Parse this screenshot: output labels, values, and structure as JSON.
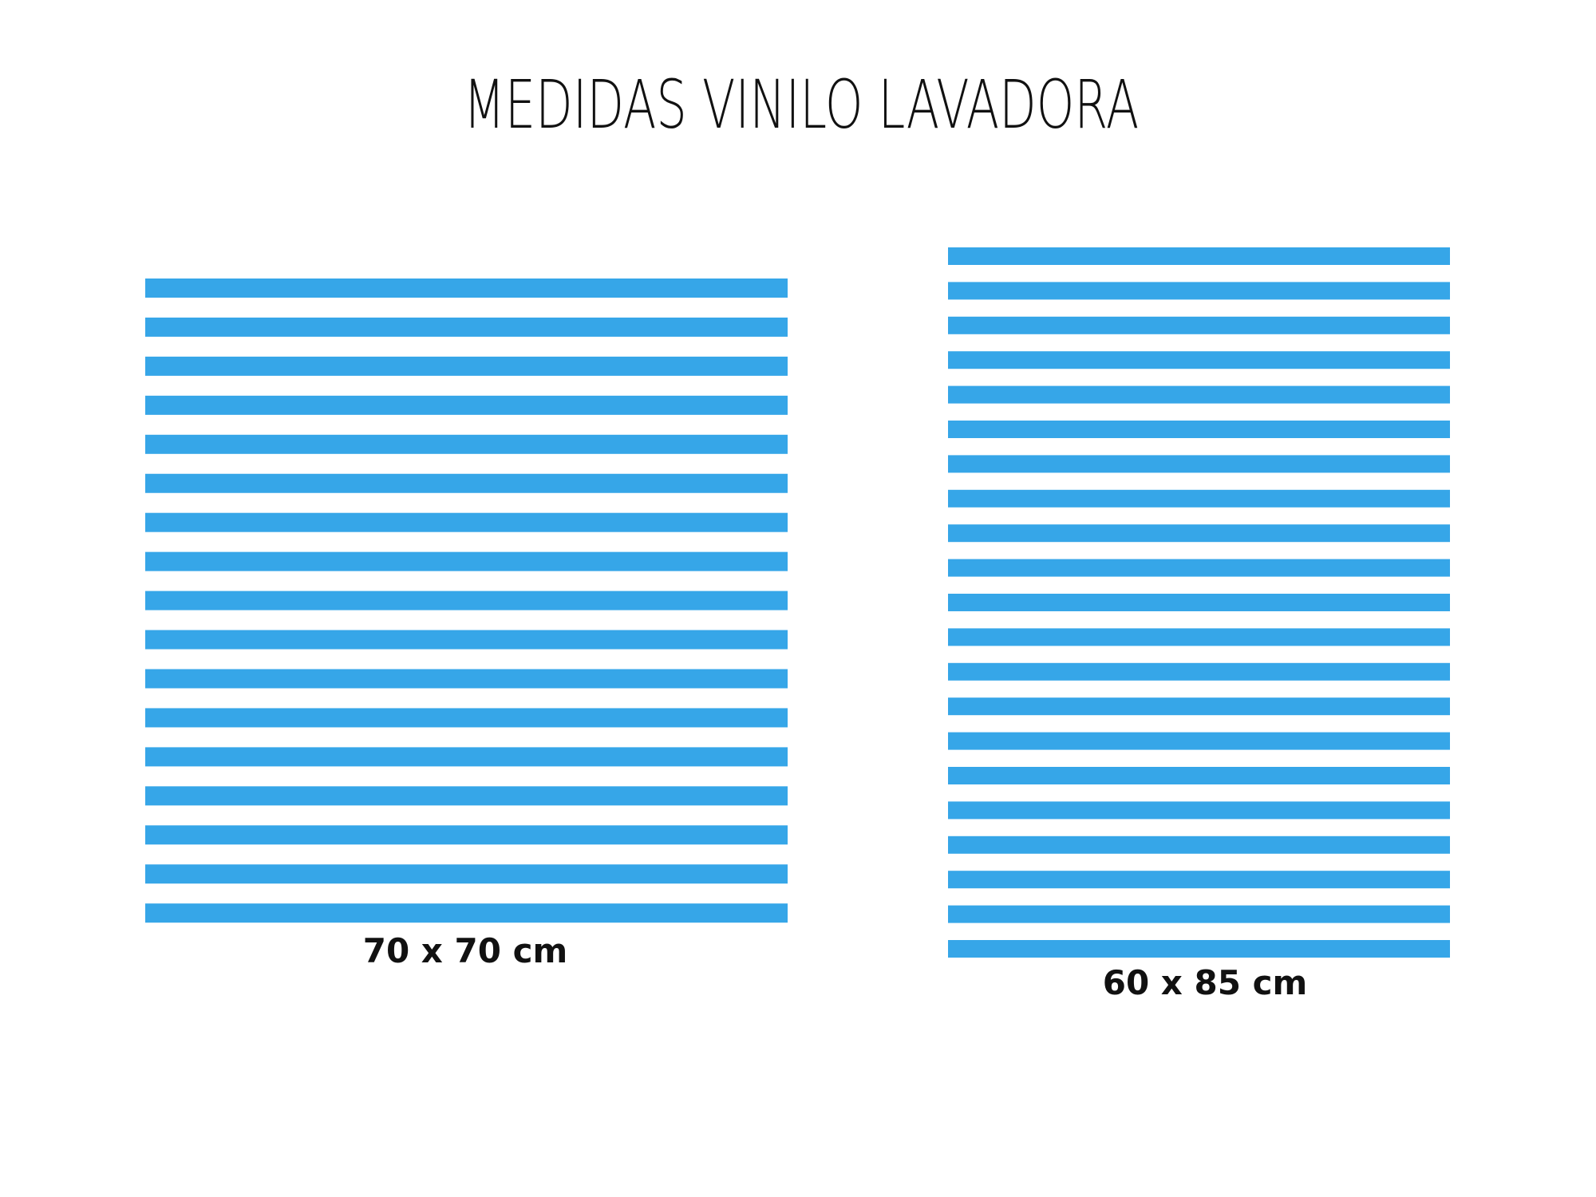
{
  "header": {
    "title": "MEDIDAS VINILO LAVADORA"
  },
  "panels": [
    {
      "label": "70 x 70 cm"
    },
    {
      "label": "60 x 85 cm"
    }
  ]
}
